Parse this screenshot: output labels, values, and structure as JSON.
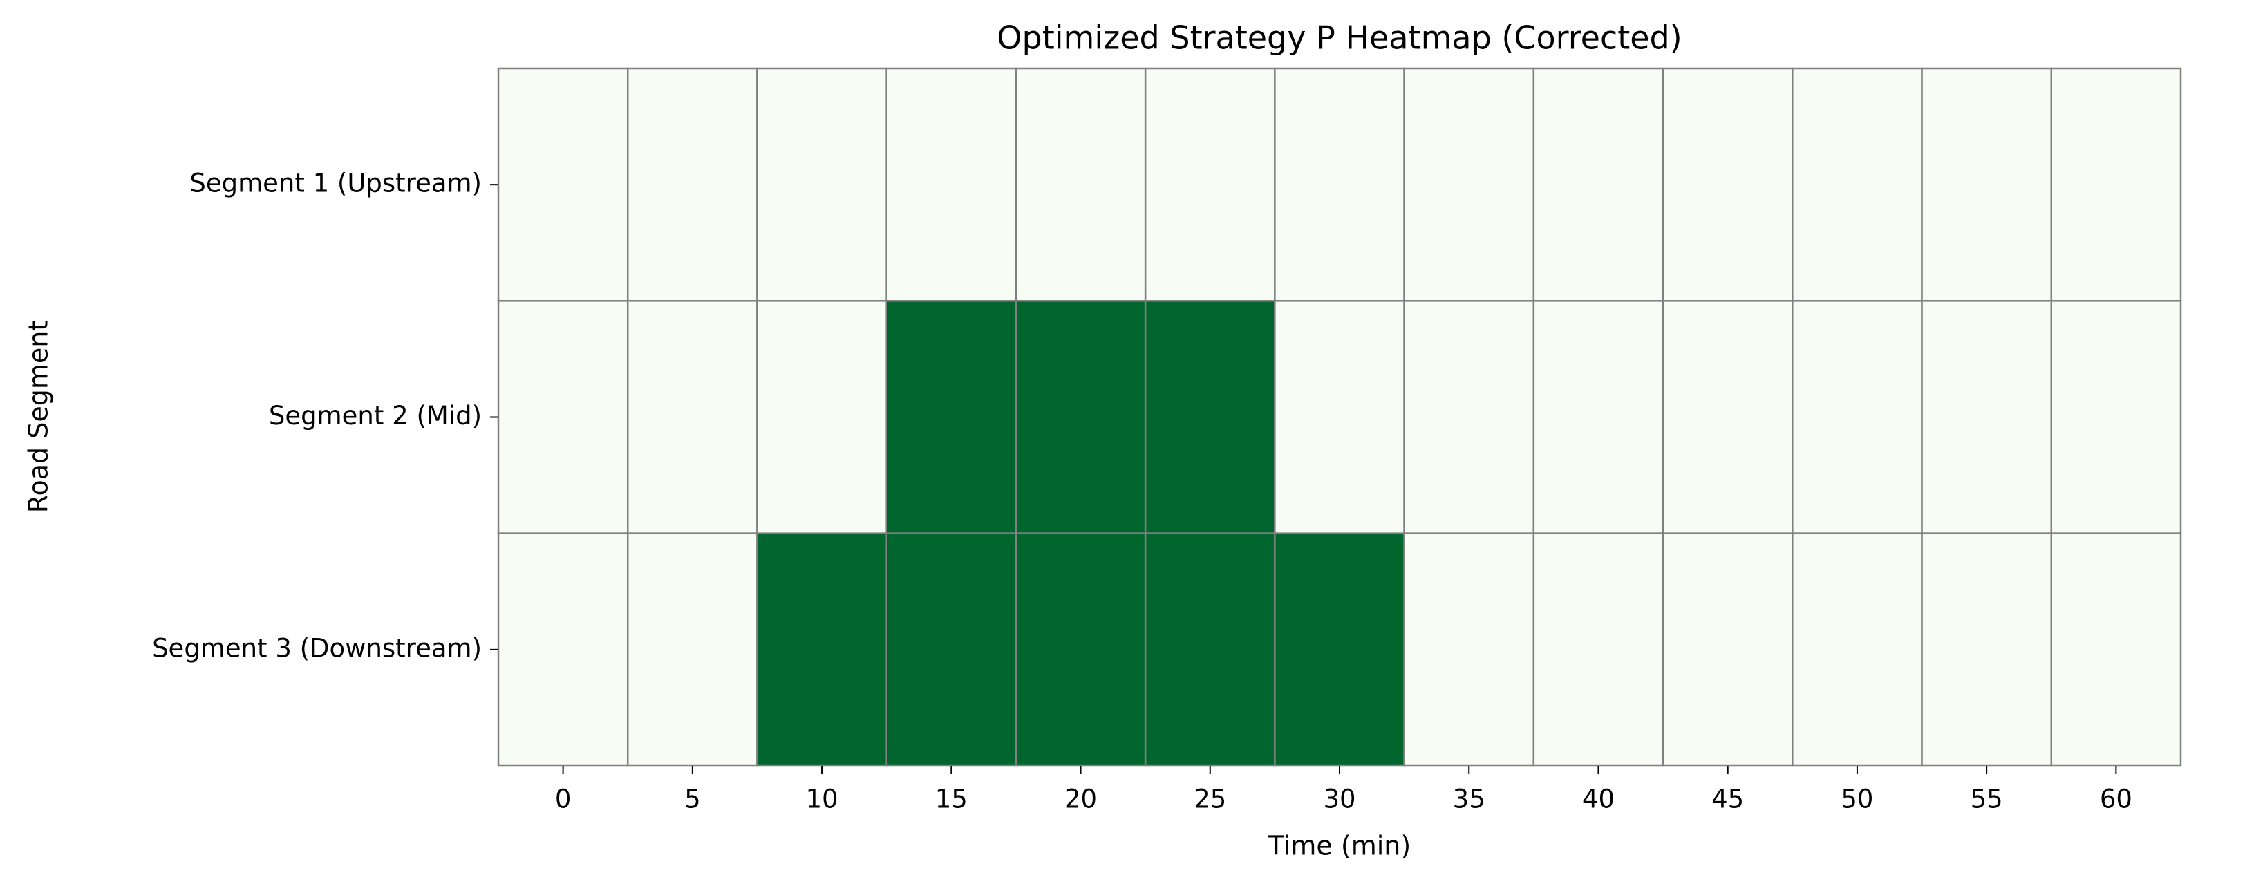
{
  "chart_data": {
    "type": "heatmap",
    "title": "Optimized Strategy P Heatmap (Corrected)",
    "x_label": "Time (min)",
    "y_label": "Road Segment",
    "x": [
      0,
      5,
      10,
      15,
      20,
      25,
      30,
      35,
      40,
      45,
      50,
      55,
      60
    ],
    "y": [
      "Segment 1 (Upstream)",
      "Segment 2 (Mid)",
      "Segment 3 (Downstream)"
    ],
    "values": [
      [
        0,
        0,
        0,
        0,
        0,
        0,
        0,
        0,
        0,
        0,
        0,
        0,
        0
      ],
      [
        0,
        0,
        0,
        1,
        1,
        1,
        0,
        0,
        0,
        0,
        0,
        0,
        0
      ],
      [
        0,
        0,
        1,
        1,
        1,
        1,
        1,
        0,
        0,
        0,
        0,
        0,
        0
      ]
    ],
    "color_low": "#f7fcf5",
    "color_high": "#00662d",
    "cell_edge_color": "#808080"
  }
}
